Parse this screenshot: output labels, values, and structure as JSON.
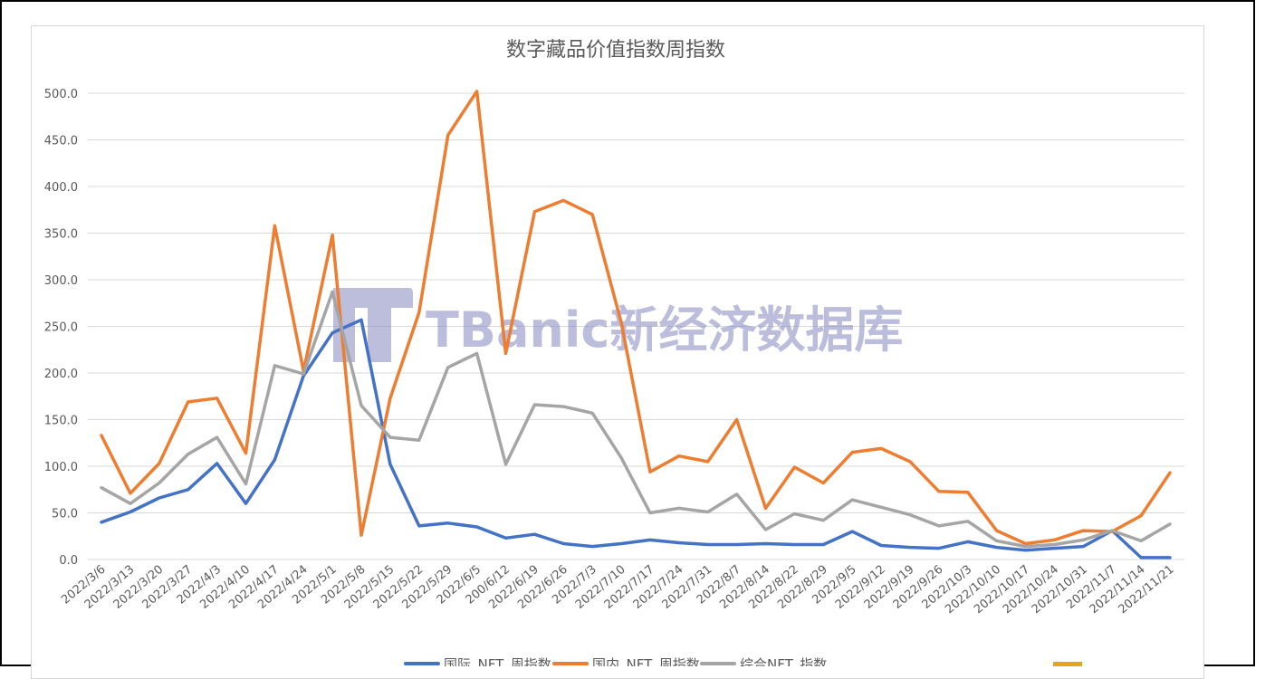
{
  "chart_data": {
    "type": "line",
    "title": "数字藏品价值指数周指数",
    "watermark": "TBanic新经济数据库",
    "ylim": [
      0,
      500
    ],
    "y_ticks": [
      "500.0",
      "450.0",
      "400.0",
      "350.0",
      "300.0",
      "250.0",
      "200.0",
      "150.0",
      "100.0",
      "50.0",
      "0.0"
    ],
    "grid": true,
    "legend_position": "bottom",
    "categories": [
      "2022/3/6",
      "2022/3/13",
      "2022/3/20",
      "2022/3/27",
      "2022/4/3",
      "2022/4/10",
      "2022/4/17",
      "2022/4/24",
      "2022/5/1",
      "2022/5/8",
      "2022/5/15",
      "2022/5/22",
      "2022/5/29",
      "2022/6/5",
      "200/6/12",
      "2022/6/19",
      "2022/6/26",
      "2022/7/3",
      "2022/7/10",
      "2022/7/17",
      "2022/7/24",
      "2022/7/31",
      "2022/8/7",
      "2022/8/14",
      "2022/8/22",
      "2022/8/29",
      "2022/9/5",
      "2022/9/12",
      "2022/9/19",
      "2022/9/26",
      "2022/10/3",
      "2022/10/10",
      "2022/10/17",
      "2022/10/24",
      "2022/10/31",
      "2022/11/7",
      "2022/11/14",
      "2022/11/21"
    ],
    "series": [
      {
        "name": "国际_NFT_周指数",
        "color": "#4472C4",
        "values": [
          40,
          51,
          66,
          75,
          103,
          60,
          107,
          197,
          243,
          257,
          102,
          36,
          39,
          35,
          23,
          27,
          17,
          14,
          17,
          21,
          18,
          16,
          16,
          17,
          16,
          16,
          30,
          15,
          13,
          12,
          19,
          13,
          10,
          12,
          14,
          31,
          2,
          2
        ]
      },
      {
        "name": "国内_NFT_周指数",
        "color": "#ED7D31",
        "values": [
          133,
          71,
          103,
          169,
          173,
          114,
          358,
          202,
          348,
          26,
          173,
          265,
          455,
          502,
          221,
          373,
          385,
          370,
          254,
          94,
          111,
          105,
          150,
          55,
          99,
          82,
          115,
          119,
          105,
          73,
          72,
          31,
          17,
          21,
          31,
          30,
          47,
          93
        ]
      },
      {
        "name": "综合NFT_指数",
        "color": "#A5A5A5",
        "values": [
          77,
          60,
          82,
          113,
          131,
          81,
          208,
          199,
          287,
          165,
          131,
          128,
          206,
          221,
          102,
          166,
          164,
          157,
          109,
          50,
          55,
          51,
          70,
          32,
          49,
          42,
          64,
          56,
          48,
          36,
          41,
          20,
          14,
          16,
          21,
          31,
          20,
          38
        ]
      }
    ]
  }
}
